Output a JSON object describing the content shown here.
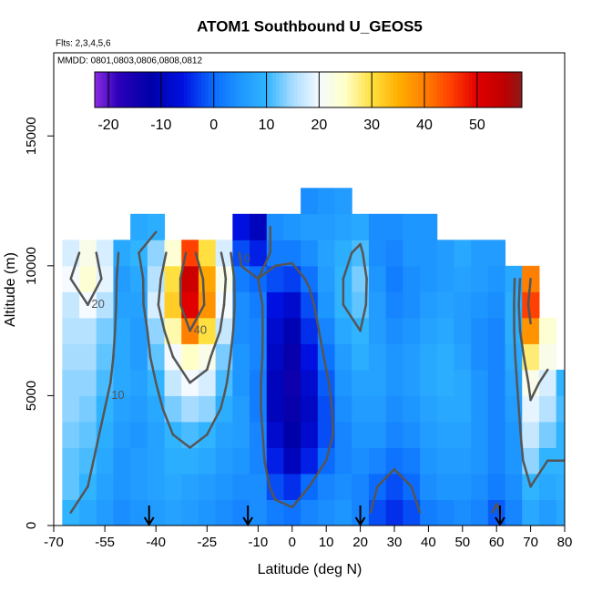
{
  "chart_data": {
    "type": "heatmap",
    "title": "ATOM1 Southbound U_GEOS5",
    "subtitle": "Flts: 2,3,4,5,6",
    "annotation": "MMDD: 0801,0803,0806,0808,0812",
    "xlabel": "Latitude (deg N)",
    "ylabel": "Altitude (m)",
    "xlim": [
      -70,
      80
    ],
    "ylim": [
      0,
      18200
    ],
    "xticks": [
      -70,
      -55,
      -40,
      -25,
      -10,
      0,
      10,
      20,
      30,
      40,
      50,
      60,
      70,
      80
    ],
    "yticks": [
      0,
      5000,
      10000,
      15000
    ],
    "x": [
      -65,
      -60,
      -55,
      -50,
      -45,
      -40,
      -35,
      -30,
      -25,
      -20,
      -15,
      -10,
      -5,
      0,
      5,
      10,
      15,
      20,
      25,
      30,
      35,
      40,
      45,
      50,
      55,
      60,
      65,
      70,
      75,
      80
    ],
    "y": [
      500,
      1500,
      2500,
      3500,
      4500,
      5500,
      6500,
      7500,
      8500,
      9500,
      10500,
      11500,
      12500
    ],
    "z": [
      [
        10,
        12,
        12,
        13,
        14,
        14,
        15,
        16,
        17,
        20,
        18,
        null,
        null
      ],
      [
        8,
        10,
        11,
        12,
        13,
        14,
        15,
        16,
        20,
        24,
        22,
        null,
        null
      ],
      [
        6,
        7,
        8,
        9,
        10,
        11,
        12,
        13,
        16,
        19,
        18,
        null,
        null
      ],
      [
        4,
        5,
        5,
        6,
        7,
        8,
        8,
        8,
        7,
        6,
        8,
        null,
        null
      ],
      [
        5,
        6,
        6,
        5,
        6,
        7,
        6,
        6,
        7,
        8,
        10,
        8,
        null
      ],
      [
        6,
        7,
        7,
        7,
        8,
        10,
        12,
        14,
        18,
        16,
        14,
        9,
        null
      ],
      [
        7,
        8,
        9,
        10,
        13,
        17,
        20,
        26,
        32,
        30,
        24,
        null,
        null
      ],
      [
        6,
        7,
        9,
        11,
        15,
        20,
        25,
        40,
        50,
        53,
        45,
        null,
        null
      ],
      [
        5,
        6,
        8,
        10,
        14,
        18,
        22,
        30,
        38,
        36,
        30,
        null,
        null
      ],
      [
        4,
        5,
        6,
        7,
        9,
        11,
        13,
        17,
        20,
        22,
        18,
        null,
        null
      ],
      [
        3,
        4,
        5,
        6,
        6,
        5,
        5,
        4,
        4,
        2,
        -2,
        -6,
        null
      ],
      [
        4,
        4,
        3,
        3,
        2,
        2,
        3,
        3,
        2,
        0,
        -5,
        -10,
        null
      ],
      [
        2,
        -2,
        -5,
        -8,
        -10,
        -10,
        -9,
        -8,
        -6,
        -2,
        2,
        4,
        null
      ],
      [
        1,
        -4,
        -10,
        -12,
        -13,
        -14,
        -13,
        -11,
        -8,
        -3,
        2,
        5,
        null
      ],
      [
        3,
        0,
        -5,
        -8,
        -9,
        -8,
        -6,
        -4,
        -2,
        1,
        4,
        6,
        4
      ],
      [
        4,
        3,
        0,
        -2,
        -2,
        -1,
        1,
        3,
        5,
        6,
        7,
        6,
        5
      ],
      [
        5,
        4,
        3,
        3,
        4,
        5,
        6,
        8,
        10,
        10,
        9,
        7,
        6
      ],
      [
        3,
        3,
        4,
        5,
        6,
        7,
        9,
        10,
        12,
        13,
        11,
        8,
        null
      ],
      [
        -2,
        0,
        3,
        5,
        6,
        7,
        7,
        6,
        6,
        5,
        4,
        4,
        null
      ],
      [
        -4,
        -2,
        1,
        3,
        4,
        5,
        5,
        4,
        3,
        2,
        3,
        4,
        null
      ],
      [
        -2,
        0,
        2,
        4,
        5,
        6,
        6,
        5,
        4,
        4,
        5,
        5,
        null
      ],
      [
        2,
        4,
        5,
        6,
        7,
        8,
        8,
        7,
        6,
        5,
        5,
        5,
        null
      ],
      [
        3,
        5,
        6,
        7,
        8,
        9,
        9,
        8,
        7,
        6,
        6,
        null,
        null
      ],
      [
        4,
        5,
        6,
        7,
        8,
        8,
        7,
        6,
        6,
        7,
        8,
        null,
        null
      ],
      [
        3,
        4,
        5,
        5,
        5,
        5,
        4,
        4,
        5,
        6,
        6,
        null,
        null
      ],
      [
        -1,
        2,
        3,
        3,
        3,
        3,
        3,
        3,
        4,
        5,
        6,
        null,
        null
      ],
      [
        3,
        4,
        5,
        5,
        6,
        7,
        8,
        9,
        9,
        8,
        null,
        null,
        null
      ],
      [
        8,
        10,
        14,
        17,
        19,
        22,
        28,
        38,
        45,
        40,
        null,
        null,
        null
      ],
      [
        6,
        8,
        10,
        13,
        16,
        18,
        22,
        24,
        null,
        null,
        null,
        null,
        null
      ],
      [
        8,
        9,
        10,
        10,
        11,
        10,
        null,
        null,
        null,
        null,
        null,
        null,
        null
      ]
    ],
    "contour_levels": [
      0,
      10,
      20,
      40
    ],
    "contour_color": "#555555",
    "flight_markers": [
      -42,
      -13,
      20,
      61
    ],
    "colorbar": {
      "lim": [
        -22.6,
        58.5
      ],
      "ticks": [
        -20,
        -10,
        0,
        10,
        20,
        30,
        40,
        50
      ],
      "stops": [
        [
          -22.6,
          "#8a2be2"
        ],
        [
          -18,
          "#2a00b8"
        ],
        [
          -12,
          "#0000a8"
        ],
        [
          -6,
          "#0010e0"
        ],
        [
          0,
          "#0a6cff"
        ],
        [
          5,
          "#1e96ff"
        ],
        [
          10,
          "#30b4ff"
        ],
        [
          15,
          "#a8dcff"
        ],
        [
          20,
          "#f4faff"
        ],
        [
          25,
          "#ffffc8"
        ],
        [
          30,
          "#ffe040"
        ],
        [
          35,
          "#ffb000"
        ],
        [
          40,
          "#ff8000"
        ],
        [
          45,
          "#ff4000"
        ],
        [
          50,
          "#e00000"
        ],
        [
          55,
          "#c00000"
        ],
        [
          58.5,
          "#8b1a1a"
        ]
      ]
    }
  }
}
